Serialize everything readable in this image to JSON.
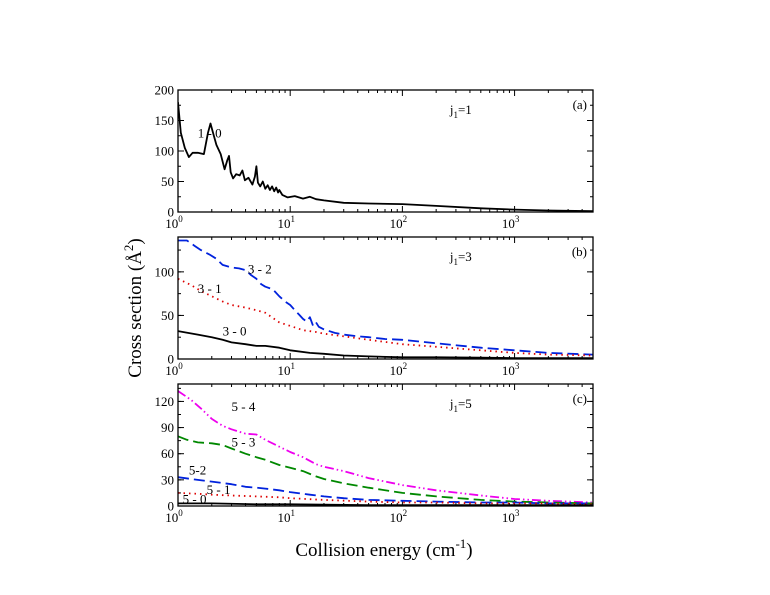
{
  "figure": {
    "ylabel": "Cross section (Å",
    "ylabel_sup": "2",
    "ylabel_close": ")",
    "xlabel": "Collision energy (cm",
    "xlabel_sup": "-1",
    "xlabel_close": ")"
  },
  "chart_data": [
    {
      "type": "line",
      "panel_label": "(a)",
      "annotation": "j1=1",
      "x_scale": "log",
      "xlim": [
        1,
        5000
      ],
      "ylim": [
        0,
        200
      ],
      "x_ticks": [
        1,
        10,
        100,
        1000
      ],
      "x_tick_labels": [
        "10^0",
        "10^1",
        "10^2",
        "10^3"
      ],
      "y_ticks": [
        0,
        50,
        100,
        150,
        200
      ],
      "y_tick_labels": [
        "0",
        "50",
        "100",
        "150",
        "200"
      ],
      "series": [
        {
          "name": "1 - 0",
          "color": "#000000",
          "style": "solid",
          "label_at": [
            1.5,
            122
          ],
          "x": [
            1.0,
            1.06,
            1.15,
            1.25,
            1.35,
            1.5,
            1.7,
            1.85,
            1.95,
            2.05,
            2.2,
            2.4,
            2.6,
            2.75,
            2.85,
            2.95,
            3.1,
            3.3,
            3.55,
            3.75,
            3.95,
            4.25,
            4.6,
            4.85,
            5.0,
            5.15,
            5.4,
            5.7,
            6.0,
            6.3,
            6.6,
            6.9,
            7.2,
            7.5,
            7.8,
            8.0,
            8.5,
            9.5,
            11,
            13,
            15,
            17,
            20,
            30,
            50,
            100,
            200,
            500,
            1000,
            2000,
            5000
          ],
          "y": [
            180,
            130,
            105,
            90,
            97,
            97,
            95,
            130,
            145,
            130,
            110,
            95,
            70,
            85,
            92,
            65,
            55,
            62,
            60,
            68,
            52,
            56,
            45,
            58,
            75,
            48,
            42,
            50,
            38,
            44,
            36,
            42,
            34,
            40,
            32,
            36,
            28,
            24,
            26,
            22,
            25,
            21,
            19,
            15,
            14,
            13,
            10,
            6,
            4,
            2.5,
            1.5
          ]
        }
      ]
    },
    {
      "type": "line",
      "panel_label": "(b)",
      "annotation": "j1=3",
      "x_scale": "log",
      "xlim": [
        1,
        5000
      ],
      "ylim": [
        0,
        140
      ],
      "x_ticks": [
        1,
        10,
        100,
        1000
      ],
      "x_tick_labels": [
        "10^0",
        "10^1",
        "10^2",
        "10^3"
      ],
      "y_ticks": [
        0,
        50,
        100
      ],
      "y_tick_labels": [
        "0",
        "50",
        "100"
      ],
      "series": [
        {
          "name": "3 - 2",
          "color": "#0022dd",
          "style": "dashed",
          "label_at": [
            4.2,
            98
          ],
          "x": [
            1.0,
            1.2,
            1.4,
            1.6,
            1.9,
            2.2,
            2.5,
            3.0,
            3.5,
            4.0,
            4.5,
            5.0,
            5.5,
            6.0,
            7.0,
            8.0,
            9.0,
            10.0,
            11.0,
            12.0,
            13.0,
            14.0,
            15.0,
            16.0,
            17.0,
            18.0,
            20.0,
            25.0,
            30.0,
            40.0,
            50.0,
            70.0,
            100,
            200,
            500,
            1000,
            2000,
            5000
          ],
          "y": [
            136,
            136,
            130,
            125,
            120,
            115,
            108,
            105,
            104,
            102,
            96,
            92,
            86,
            83,
            80,
            72,
            66,
            62,
            56,
            51,
            46,
            43,
            48,
            38,
            42,
            37,
            34,
            30,
            28,
            26,
            25,
            23,
            22,
            18,
            13,
            10,
            7,
            5
          ]
        },
        {
          "name": "3 - 1",
          "color": "#dd0000",
          "style": "dotted",
          "label_at": [
            1.5,
            76
          ],
          "x": [
            1.0,
            1.3,
            1.6,
            2.0,
            2.5,
            3.0,
            4.0,
            5.0,
            6.0,
            8.0,
            10,
            13,
            17,
            20,
            30,
            50,
            100,
            200,
            500,
            1000,
            2000,
            5000
          ],
          "y": [
            92,
            85,
            78,
            72,
            66,
            62,
            59,
            56,
            53,
            42,
            38,
            33,
            31,
            29,
            26,
            22,
            17,
            14,
            10,
            7,
            5,
            4
          ]
        },
        {
          "name": "3 - 0",
          "color": "#000000",
          "style": "solid",
          "label_at": [
            2.5,
            27
          ],
          "x": [
            1.0,
            1.5,
            2.0,
            2.5,
            3.0,
            4.0,
            5.0,
            6.0,
            8.0,
            10,
            15,
            20,
            30,
            50,
            100,
            200,
            500,
            1000,
            2000,
            5000
          ],
          "y": [
            32,
            28,
            25,
            22,
            19,
            17,
            15,
            15,
            13,
            10,
            7,
            6,
            4,
            3,
            2,
            2,
            1.5,
            1,
            1,
            1
          ]
        }
      ]
    },
    {
      "type": "line",
      "panel_label": "(c)",
      "annotation": "j1=5",
      "x_scale": "log",
      "xlim": [
        1,
        5000
      ],
      "ylim": [
        0,
        140
      ],
      "x_ticks": [
        1,
        10,
        100,
        1000
      ],
      "x_tick_labels": [
        "10^0",
        "10^1",
        "10^2",
        "10^3"
      ],
      "y_ticks": [
        0,
        30,
        60,
        90,
        120
      ],
      "y_tick_labels": [
        "0",
        "30",
        "60",
        "90",
        "120"
      ],
      "series": [
        {
          "name": "5 - 4",
          "color": "#ee00ee",
          "style": "dashdotdot",
          "label_at": [
            3.0,
            109
          ],
          "x": [
            1.0,
            1.3,
            1.6,
            2.0,
            2.5,
            3.0,
            4.0,
            5.0,
            6.0,
            8.0,
            10,
            13,
            17,
            20,
            30,
            50,
            100,
            200,
            500,
            1000,
            2000,
            5000
          ],
          "y": [
            132,
            122,
            112,
            100,
            92,
            88,
            83,
            82,
            76,
            68,
            62,
            56,
            48,
            45,
            40,
            32,
            24,
            18,
            12,
            8,
            6,
            4
          ]
        },
        {
          "name": "5 - 3",
          "color": "#008800",
          "style": "dashed",
          "label_at": [
            3.0,
            68
          ],
          "x": [
            1.0,
            1.2,
            1.5,
            2.0,
            2.5,
            3.0,
            4.0,
            5.0,
            6.0,
            8.0,
            10,
            13,
            17,
            20,
            30,
            50,
            100,
            200,
            500,
            1000,
            2000,
            5000
          ],
          "y": [
            80,
            76,
            73,
            72,
            70,
            66,
            60,
            56,
            53,
            47,
            44,
            40,
            34,
            31,
            26,
            21,
            15,
            11,
            7,
            5,
            4,
            3
          ]
        },
        {
          "name": "5-2",
          "color": "#0022dd",
          "style": "dashed",
          "label_at": [
            1.25,
            36
          ],
          "x": [
            1.0,
            1.5,
            2.0,
            3.0,
            4.0,
            5.0,
            6.0,
            8.0,
            10,
            15,
            20,
            30,
            50,
            100,
            200,
            500,
            1000,
            2000,
            5000
          ],
          "y": [
            33,
            30,
            28,
            25,
            22,
            21,
            20,
            18,
            16,
            13,
            11,
            9,
            7,
            6,
            5,
            4,
            4,
            3,
            3
          ]
        },
        {
          "name": "5 - 1",
          "color": "#dd0000",
          "style": "dotted",
          "label_at": [
            1.8,
            14
          ],
          "x": [
            1.0,
            1.5,
            2.0,
            3.0,
            5.0,
            8.0,
            10,
            20,
            50,
            100,
            200,
            500,
            1000,
            2000,
            5000
          ],
          "y": [
            15,
            14,
            13,
            12,
            11,
            10,
            9,
            7,
            5,
            4,
            4,
            3,
            3,
            3,
            2
          ]
        },
        {
          "name": "5 - 0",
          "color": "#000000",
          "style": "solid",
          "label_at": [
            1.1,
            3
          ],
          "x": [
            1.0,
            2.0,
            5.0,
            10,
            50,
            100,
            500,
            1000,
            5000
          ],
          "y": [
            3,
            3,
            2,
            2,
            1,
            1,
            1,
            1,
            1
          ]
        }
      ]
    }
  ]
}
